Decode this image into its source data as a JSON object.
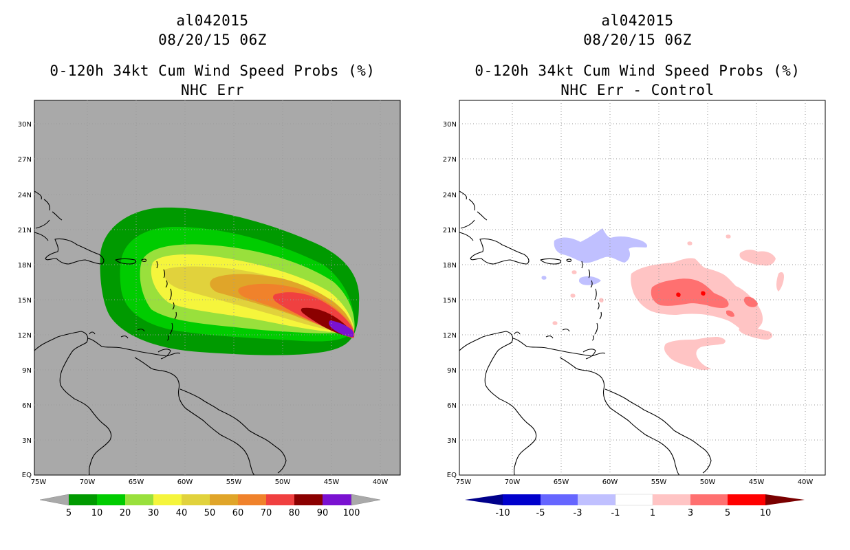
{
  "panels": [
    {
      "storm_id": "al042015",
      "valid_time": "08/20/15 06Z",
      "product": "0-120h 34kt Cum Wind Speed Probs (%)",
      "subtitle": "NHC Err",
      "background": "#a9a9a9",
      "colorbar": {
        "labels": [
          "5",
          "10",
          "20",
          "30",
          "40",
          "50",
          "60",
          "70",
          "80",
          "90",
          "100"
        ],
        "colors": [
          "#009a00",
          "#00cc00",
          "#99e03c",
          "#f5f53c",
          "#e1d23c",
          "#e0a529",
          "#f0822b",
          "#f04040",
          "#8b0000",
          "#7a12d1"
        ]
      }
    },
    {
      "storm_id": "al042015",
      "valid_time": "08/20/15 06Z",
      "product": "0-120h 34kt Cum Wind Speed Probs (%)",
      "subtitle": "NHC Err - Control",
      "background": "#ffffff",
      "colorbar": {
        "labels": [
          "-10",
          "-5",
          "-3",
          "-1",
          "1",
          "3",
          "5",
          "10"
        ],
        "colors": [
          "#0000cc",
          "#6666ff",
          "#c0c0ff",
          "#ffffff",
          "#ffc4c4",
          "#ff7070",
          "#ff0000"
        ],
        "end_colors": [
          "#00008b",
          "#7a0000"
        ]
      }
    }
  ],
  "map": {
    "lat_labels": [
      "30N",
      "27N",
      "24N",
      "21N",
      "18N",
      "15N",
      "12N",
      "9N",
      "6N",
      "3N",
      "EQ"
    ],
    "lon_labels": [
      "75W",
      "70W",
      "65W",
      "60W",
      "55W",
      "50W",
      "45W",
      "40W"
    ]
  }
}
